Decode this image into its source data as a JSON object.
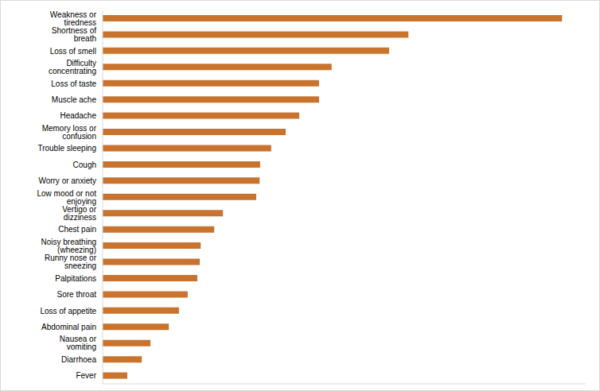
{
  "chart_data": {
    "type": "bar",
    "orientation": "horizontal",
    "categories": [
      "Weakness or tiredness",
      "Shortness of breath",
      "Loss of smell",
      "Difficulty concentrating",
      "Loss of taste",
      "Muscle ache",
      "Headache",
      "Memory loss or confusion",
      "Trouble sleeping",
      "Cough",
      "Worry or anxiety",
      "Low mood or not enjoying",
      "Vertigo or dizziness",
      "Chest pain",
      "Noisy breathing (wheezing)",
      "Runny nose or sneezing",
      "Palpitations",
      "Sore throat",
      "Loss of appetite",
      "Abdominal pain",
      "Nausea or vomiting",
      "Diarrhoea",
      "Fever"
    ],
    "values": [
      95.1,
      63.3,
      59.3,
      47.4,
      44.8,
      44.8,
      40.7,
      37.9,
      34.9,
      32.6,
      32.5,
      31.8,
      24.9,
      23.1,
      20.3,
      20.1,
      19.6,
      17.6,
      15.8,
      13.7,
      9.9,
      8.1,
      5.1
    ],
    "color": "#c8732e",
    "xlim": [
      0,
      100
    ],
    "tick_labels": "y",
    "grid": false
  }
}
